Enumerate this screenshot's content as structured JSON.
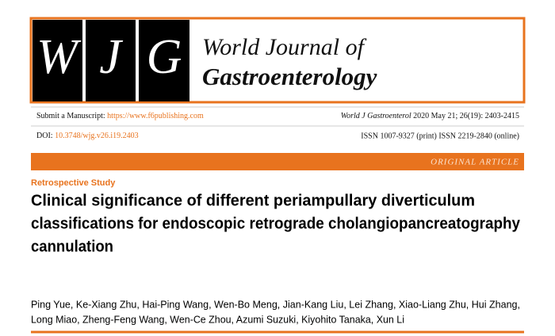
{
  "header": {
    "logo_letters": [
      "W",
      "J",
      "G"
    ],
    "journal_line1": "World Journal of",
    "journal_line2": "Gastroenterology"
  },
  "meta": {
    "submit_label": "Submit a Manuscript:",
    "submit_url": "https://www.f6publishing.com",
    "citation_journal": "World J Gastroenterol",
    "citation_details": "2020 May 21; 26(19): 2403-2415",
    "doi_label": "DOI:",
    "doi": "10.3748/wjg.v26.i19.2403",
    "issn": "ISSN 1007-9327 (print) ISSN 2219-2840 (online)"
  },
  "article_type": "ORIGINAL ARTICLE",
  "study_type": "Retrospective Study",
  "title_lines": [
    "Clinical significance of different periampullary diverticulum",
    "classifications for endoscopic retrograde cholangiopancreatography",
    "cannulation"
  ],
  "author_lines": [
    "Ping Yue, Ke-Xiang Zhu, Hai-Ping Wang, Wen-Bo Meng, Jian-Kang Liu, Lei Zhang, Xiao-Liang Zhu, Hui Zhang,",
    "Long Miao, Zheng-Feng Wang, Wen-Ce Zhou, Azumi Suzuki, Kiyohito Tanaka, Xun Li"
  ]
}
